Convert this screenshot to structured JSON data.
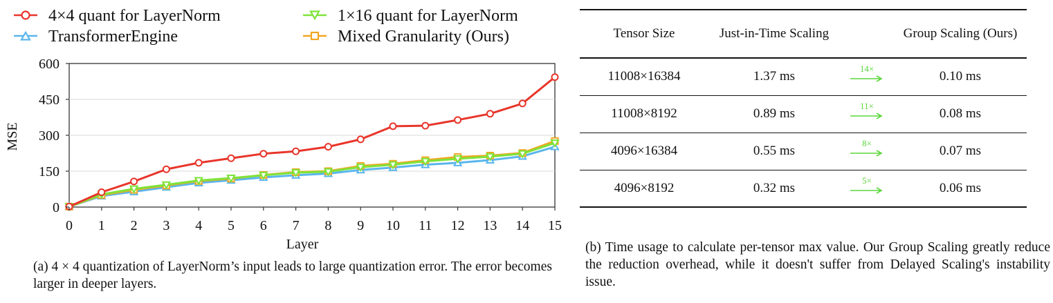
{
  "chart_data": {
    "type": "line",
    "title": "",
    "xlabel": "Layer",
    "ylabel": "MSE",
    "x": [
      0,
      1,
      2,
      3,
      4,
      5,
      6,
      7,
      8,
      9,
      10,
      11,
      12,
      13,
      14,
      15
    ],
    "xticks": [
      "0",
      "1",
      "2",
      "3",
      "4",
      "5",
      "6",
      "7",
      "8",
      "9",
      "10",
      "11",
      "12",
      "13",
      "14",
      "15"
    ],
    "yticks": [
      "0",
      "150",
      "300",
      "450",
      "600"
    ],
    "ylim": [
      0,
      600
    ],
    "legend_position": "top",
    "series": [
      {
        "name": "4×4 quant for LayerNorm",
        "color": "#e8352a",
        "marker": "circle",
        "values": [
          2,
          62,
          107,
          158,
          185,
          204,
          223,
          233,
          252,
          283,
          338,
          340,
          364,
          390,
          433,
          543
        ]
      },
      {
        "name": "1×16 quant for LayerNorm",
        "color": "#7ee33a",
        "marker": "triangle-down",
        "values": [
          2,
          53,
          76,
          93,
          111,
          121,
          133,
          144,
          148,
          167,
          177,
          191,
          202,
          211,
          223,
          268
        ]
      },
      {
        "name": "TransformerEngine",
        "color": "#5ab6ec",
        "marker": "triangle-up",
        "values": [
          2,
          46,
          64,
          83,
          101,
          112,
          124,
          133,
          140,
          155,
          165,
          177,
          185,
          196,
          212,
          252
        ]
      },
      {
        "name": "Mixed Granularity (Ours)",
        "color": "#f2a623",
        "marker": "square",
        "values": [
          2,
          50,
          72,
          90,
          109,
          119,
          134,
          146,
          150,
          172,
          181,
          196,
          209,
          215,
          226,
          276
        ]
      }
    ]
  },
  "caption_a": "(a) 4 × 4 quantization of LayerNorm’s input leads to large quantization error. The error becomes larger in deeper layers.",
  "table": {
    "headers": [
      "Tensor Size",
      "Just-in-Time Scaling",
      "Group Scaling (Ours)"
    ],
    "rows": [
      {
        "size": "11008×16384",
        "jit": "1.37 ms",
        "speedup": "14×",
        "group": "0.10 ms"
      },
      {
        "size": "11008×8192",
        "jit": "0.89 ms",
        "speedup": "11×",
        "group": "0.08 ms"
      },
      {
        "size": "4096×16384",
        "jit": "0.55 ms",
        "speedup": "8×",
        "group": "0.07 ms"
      },
      {
        "size": "4096×8192",
        "jit": "0.32 ms",
        "speedup": "5×",
        "group": "0.06 ms"
      }
    ],
    "arrow_color": "#5ad63a"
  },
  "caption_b": "(b) Time usage to calculate per-tensor max value. Our Group Scaling greatly reduce the reduction overhead, while it doesn't suffer from Delayed Scaling's instability issue."
}
